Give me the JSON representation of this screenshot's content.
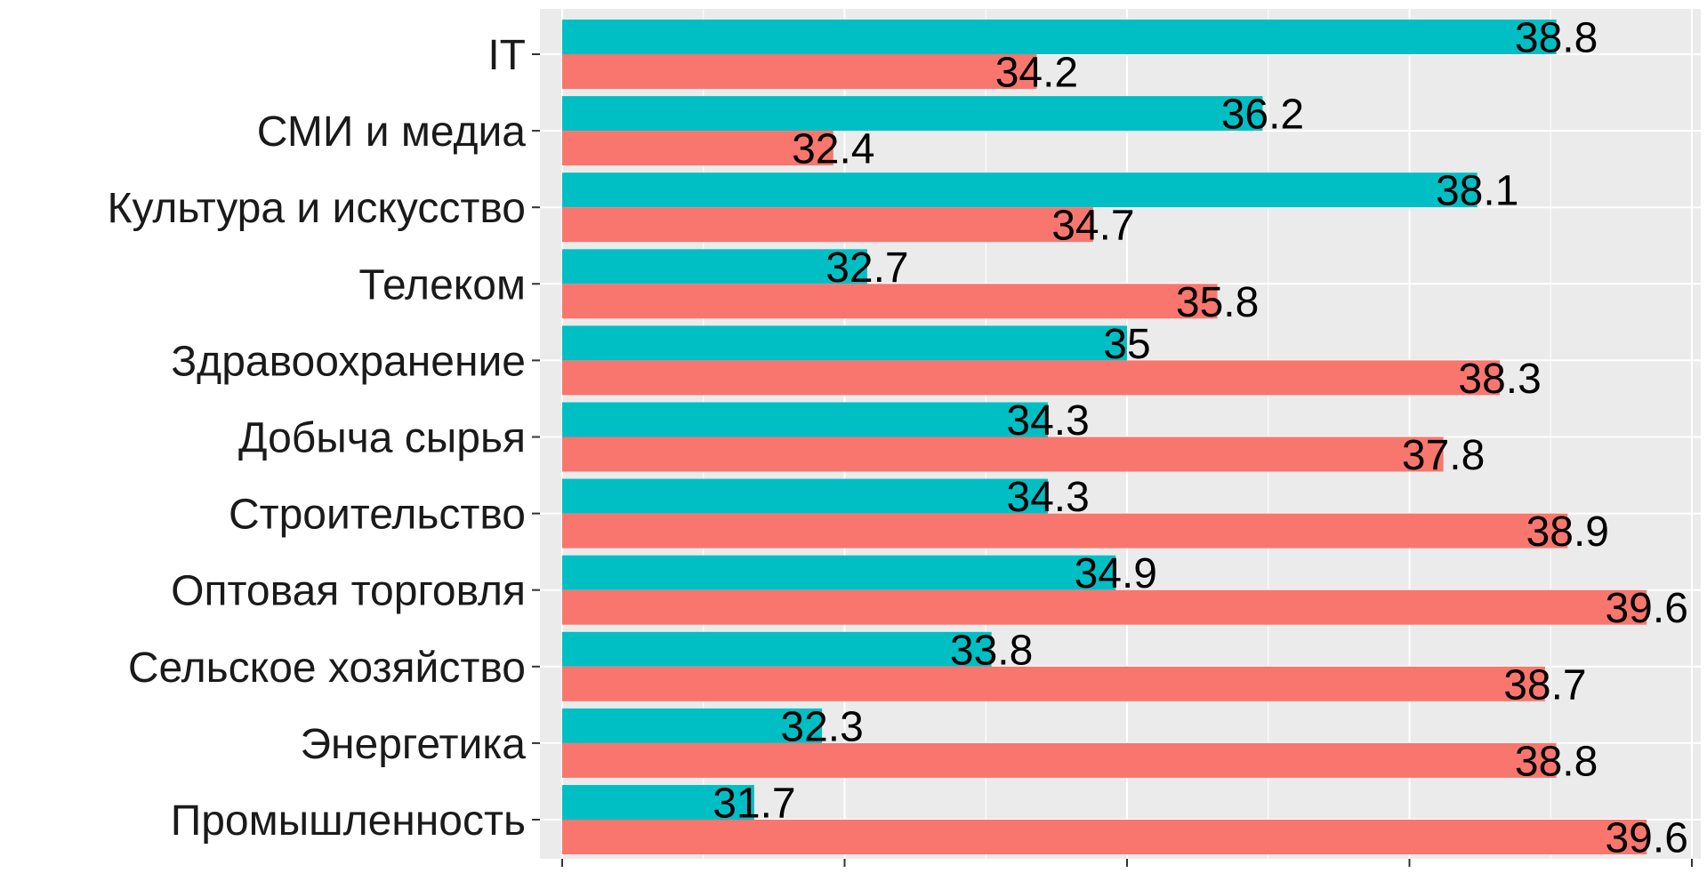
{
  "chart_data": {
    "type": "bar",
    "orientation": "horizontal",
    "grouped": true,
    "title": "",
    "xlabel": "",
    "ylabel": "",
    "xlim": [
      30,
      40
    ],
    "grid": true,
    "legend": "none",
    "categories": [
      "IT",
      "СМИ и медиа",
      "Культура и искусство",
      "Телеком",
      "Здравоохранение",
      "Добыча сырья",
      "Строительство",
      "Оптовая торговля",
      "Сельское хозяйство",
      "Энергетика",
      "Промышленность"
    ],
    "series": [
      {
        "name": "series-1",
        "color": "#00BFC4",
        "values": [
          38.8,
          36.2,
          38.1,
          32.7,
          35,
          34.3,
          34.3,
          34.9,
          33.8,
          32.3,
          31.7
        ],
        "labels": [
          "38.8",
          "36.2",
          "38.1",
          "32.7",
          "35",
          "34.3",
          "34.3",
          "34.9",
          "33.8",
          "32.3",
          "31.7"
        ]
      },
      {
        "name": "series-2",
        "color": "#F8766D",
        "values": [
          34.2,
          32.4,
          34.7,
          35.8,
          38.3,
          37.8,
          38.9,
          39.6,
          38.7,
          38.8,
          39.6
        ],
        "labels": [
          "34.2",
          "32.4",
          "34.7",
          "35.8",
          "38.3",
          "37.8",
          "38.9",
          "39.6",
          "38.7",
          "38.8",
          "39.6"
        ]
      }
    ],
    "panel_background": "#EBEBEB",
    "grid_color": "#FFFFFF",
    "axis_text_color": "#1A1A1A",
    "tick_color": "#333333"
  }
}
